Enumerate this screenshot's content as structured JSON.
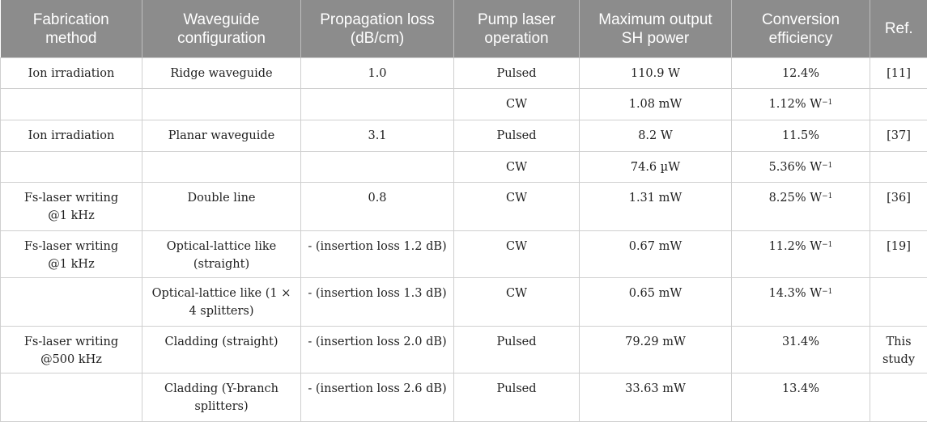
{
  "table": {
    "headers": [
      {
        "line1": "Fabrication",
        "line2": "method"
      },
      {
        "line1": "Waveguide",
        "line2": "configuration"
      },
      {
        "line1": "Propagation loss",
        "line2": "(dB/cm)"
      },
      {
        "line1": "Pump laser",
        "line2": "operation"
      },
      {
        "line1": "Maximum output",
        "line2": "SH power"
      },
      {
        "line1": "Conversion",
        "line2": "efficiency"
      },
      {
        "line1": "Ref.",
        "line2": ""
      }
    ],
    "rows": [
      {
        "method": "Ion irradiation",
        "method2": "",
        "config": "Ridge waveguide",
        "config2": "",
        "loss": "1.0",
        "pump": "Pulsed",
        "power": "110.9 W",
        "eff": "12.4%",
        "eff_unit": "",
        "ref": "[11]",
        "ref2": ""
      },
      {
        "method": "",
        "method2": "",
        "config": "",
        "config2": "",
        "loss": "",
        "pump": "CW",
        "power": "1.08 mW",
        "eff": "1.12% W",
        "eff_unit": "−1",
        "ref": "",
        "ref2": ""
      },
      {
        "method": "Ion irradiation",
        "method2": "",
        "config": "Planar waveguide",
        "config2": "",
        "loss": "3.1",
        "pump": "Pulsed",
        "power": "8.2 W",
        "eff": "11.5%",
        "eff_unit": "",
        "ref": "[37]",
        "ref2": ""
      },
      {
        "method": "",
        "method2": "",
        "config": "",
        "config2": "",
        "loss": "",
        "pump": "CW",
        "power": "74.6 µW",
        "eff": "5.36% W",
        "eff_unit": "−1",
        "ref": "",
        "ref2": ""
      },
      {
        "method": "Fs-laser writing",
        "method2": "@1 kHz",
        "config": "Double line",
        "config2": "",
        "loss": "0.8",
        "pump": "CW",
        "power": "1.31 mW",
        "eff": "8.25% W",
        "eff_unit": "−1",
        "ref": "[36]",
        "ref2": ""
      },
      {
        "method": "Fs-laser writing",
        "method2": "@1 kHz",
        "config": "Optical-lattice like",
        "config2": "(straight)",
        "loss": "- (insertion loss 1.2 dB)",
        "pump": "CW",
        "power": "0.67 mW",
        "eff": "11.2% W",
        "eff_unit": "−1",
        "ref": "[19]",
        "ref2": ""
      },
      {
        "method": "",
        "method2": "",
        "config": "Optical-lattice like (1 ×",
        "config2": "4 splitters)",
        "loss": "- (insertion loss 1.3 dB)",
        "pump": "CW",
        "power": "0.65 mW",
        "eff": "14.3% W",
        "eff_unit": "−1",
        "ref": "",
        "ref2": ""
      },
      {
        "method": "Fs-laser writing",
        "method2": "@500 kHz",
        "config": "Cladding (straight)",
        "config2": "",
        "loss": "- (insertion loss 2.0 dB)",
        "pump": "Pulsed",
        "power": "79.29 mW",
        "eff": "31.4%",
        "eff_unit": "",
        "ref": "This",
        "ref2": "study"
      },
      {
        "method": "",
        "method2": "",
        "config": "Cladding (Y-branch",
        "config2": "splitters)",
        "loss": "- (insertion loss 2.6 dB)",
        "pump": "Pulsed",
        "power": "33.63 mW",
        "eff": "13.4%",
        "eff_unit": "",
        "ref": "",
        "ref2": ""
      }
    ]
  }
}
